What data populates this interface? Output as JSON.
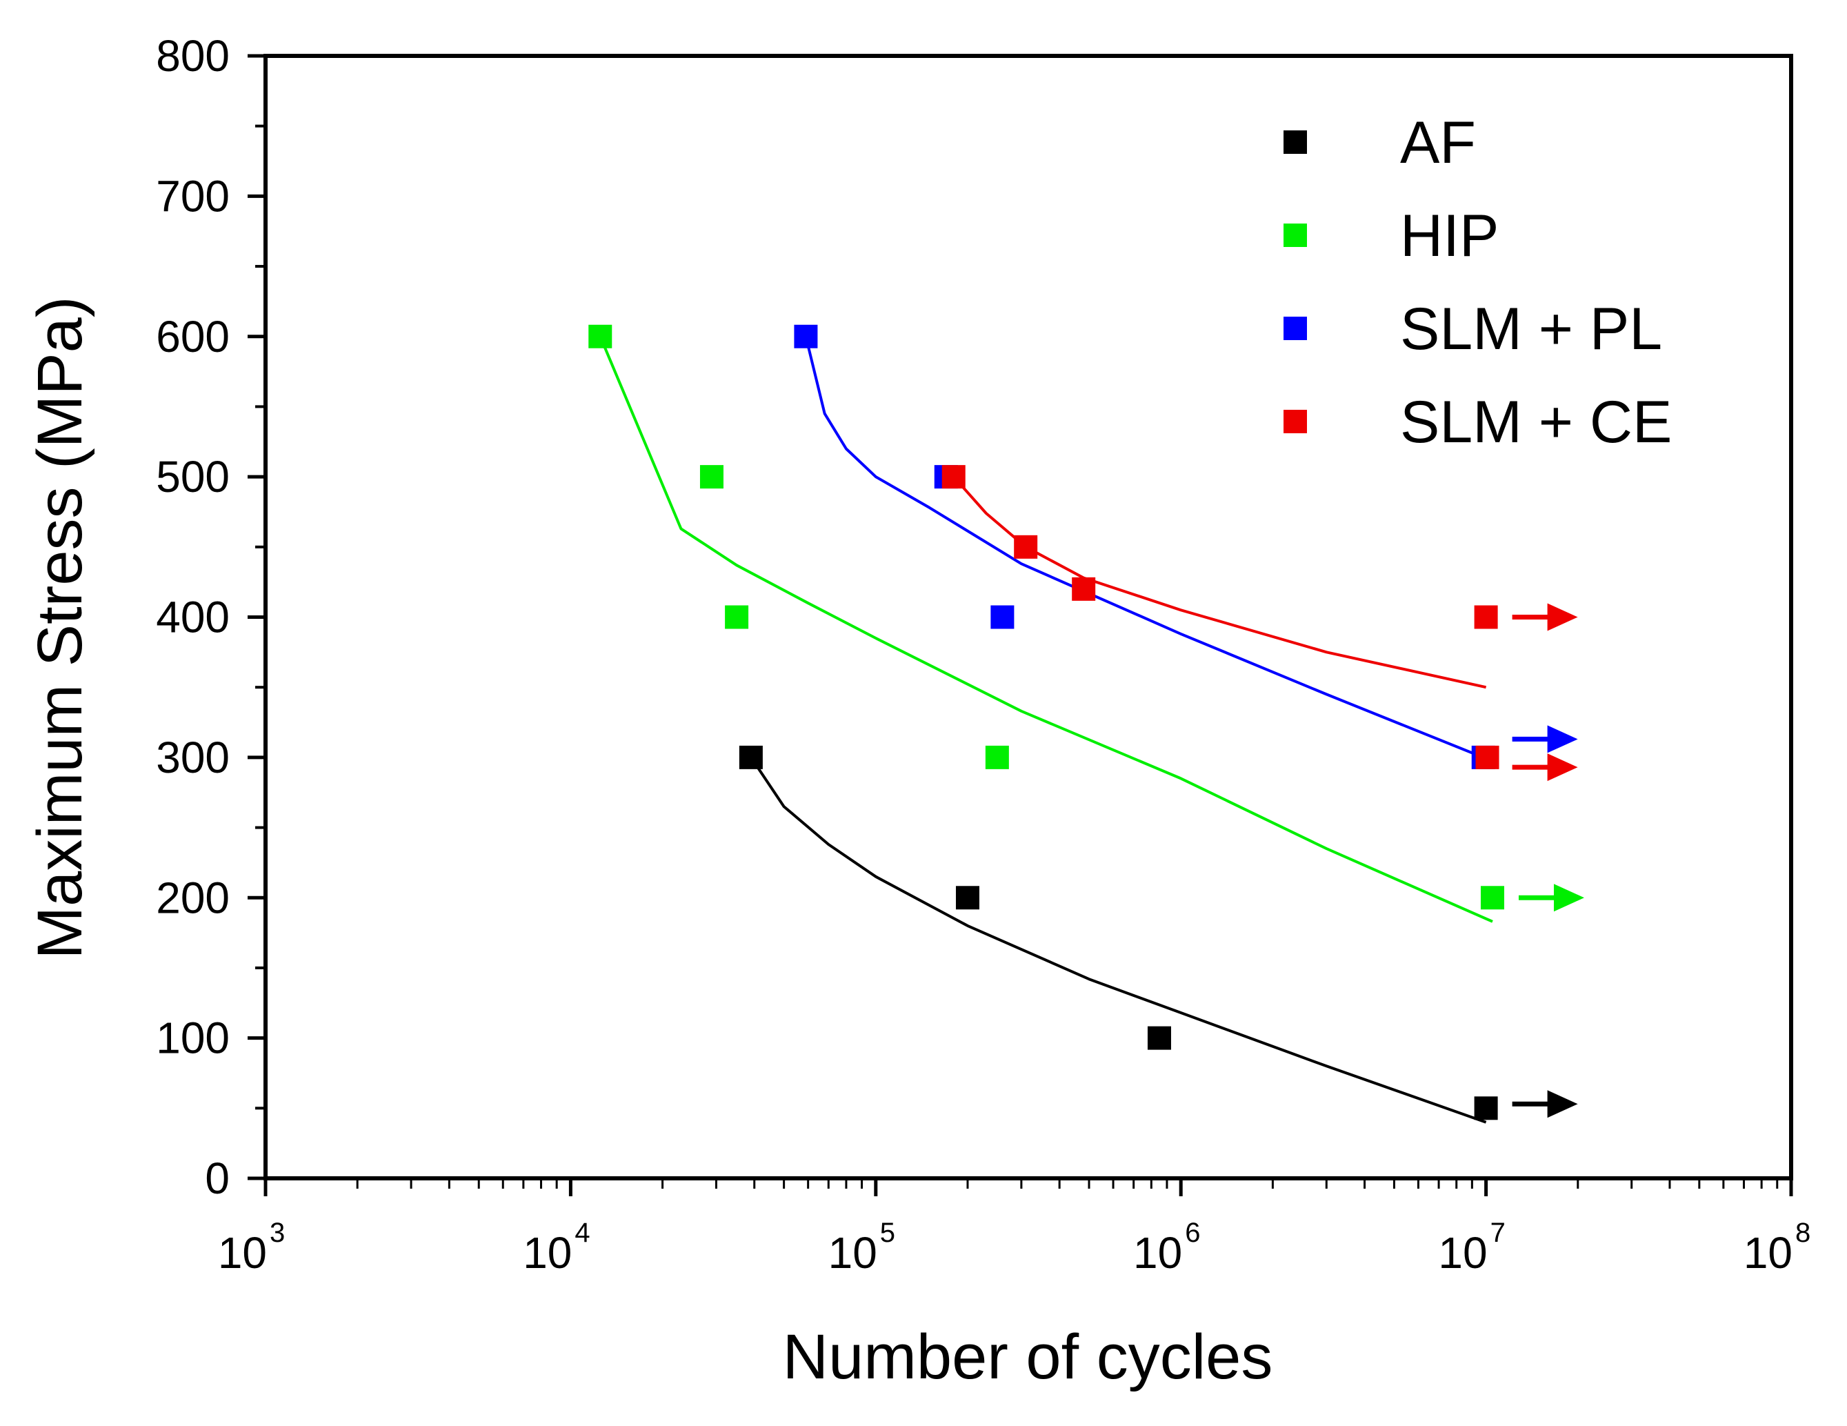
{
  "chart_data": {
    "type": "scatter",
    "title": "",
    "xlabel": "Number of cycles",
    "ylabel": "Maximum Stress (MPa)",
    "xscale": "log",
    "xlim": [
      1000,
      100000000
    ],
    "ylim": [
      0,
      800
    ],
    "grid": false,
    "legend_position": "top-right",
    "x_ticks": [
      {
        "value": 1000,
        "base": "10",
        "exp": "3"
      },
      {
        "value": 10000,
        "base": "10",
        "exp": "4"
      },
      {
        "value": 100000,
        "base": "10",
        "exp": "5"
      },
      {
        "value": 1000000,
        "base": "10",
        "exp": "6"
      },
      {
        "value": 10000000,
        "base": "10",
        "exp": "7"
      },
      {
        "value": 100000000,
        "base": "10",
        "exp": "8"
      }
    ],
    "y_ticks": [
      0,
      100,
      200,
      300,
      400,
      500,
      600,
      700,
      800
    ],
    "y_minor_ticks": [
      50,
      150,
      250,
      350,
      450,
      550,
      650,
      750
    ],
    "series": [
      {
        "name": "AF",
        "color": "#000000",
        "points": [
          {
            "x": 39000,
            "y": 300
          },
          {
            "x": 200000,
            "y": 200
          },
          {
            "x": 850000,
            "y": 100
          },
          {
            "x": 10000000,
            "y": 50
          }
        ],
        "fit": [
          {
            "x": 39000,
            "y": 300
          },
          {
            "x": 50000,
            "y": 265
          },
          {
            "x": 70000,
            "y": 238
          },
          {
            "x": 100000,
            "y": 215
          },
          {
            "x": 200000,
            "y": 180
          },
          {
            "x": 500000,
            "y": 142
          },
          {
            "x": 1000000,
            "y": 118
          },
          {
            "x": 3000000,
            "y": 80
          },
          {
            "x": 10000000,
            "y": 40
          }
        ],
        "runouts": [
          {
            "x": 10000000,
            "y": 53
          }
        ]
      },
      {
        "name": "HIP",
        "color": "#00ee00",
        "points": [
          {
            "x": 12500,
            "y": 600
          },
          {
            "x": 29000,
            "y": 500
          },
          {
            "x": 35000,
            "y": 400
          },
          {
            "x": 250000,
            "y": 300
          },
          {
            "x": 10500000,
            "y": 200
          }
        ],
        "fit": [
          {
            "x": 12500,
            "y": 600
          },
          {
            "x": 23000,
            "y": 463
          },
          {
            "x": 35000,
            "y": 437
          },
          {
            "x": 60000,
            "y": 410
          },
          {
            "x": 100000,
            "y": 385
          },
          {
            "x": 300000,
            "y": 333
          },
          {
            "x": 1000000,
            "y": 285
          },
          {
            "x": 3000000,
            "y": 235
          },
          {
            "x": 10500000,
            "y": 183
          }
        ],
        "runouts": [
          {
            "x": 10500000,
            "y": 200
          }
        ]
      },
      {
        "name": "SLM + PL",
        "color": "#0000ff",
        "points": [
          {
            "x": 59000,
            "y": 600
          },
          {
            "x": 170000,
            "y": 500
          },
          {
            "x": 260000,
            "y": 400
          },
          {
            "x": 9800000,
            "y": 300
          }
        ],
        "fit": [
          {
            "x": 59000,
            "y": 600
          },
          {
            "x": 68000,
            "y": 545
          },
          {
            "x": 80000,
            "y": 520
          },
          {
            "x": 100000,
            "y": 500
          },
          {
            "x": 150000,
            "y": 478
          },
          {
            "x": 300000,
            "y": 438
          },
          {
            "x": 1000000,
            "y": 388
          },
          {
            "x": 3000000,
            "y": 345
          },
          {
            "x": 9800000,
            "y": 300
          }
        ],
        "runouts": [
          {
            "x": 10000000,
            "y": 313
          }
        ]
      },
      {
        "name": "SLM + CE",
        "color": "#ee0000",
        "points": [
          {
            "x": 180000,
            "y": 500
          },
          {
            "x": 310000,
            "y": 450
          },
          {
            "x": 480000,
            "y": 420
          },
          {
            "x": 10000000,
            "y": 400
          },
          {
            "x": 10100000,
            "y": 300
          }
        ],
        "fit": [
          {
            "x": 180000,
            "y": 500
          },
          {
            "x": 230000,
            "y": 474
          },
          {
            "x": 310000,
            "y": 450
          },
          {
            "x": 480000,
            "y": 428
          },
          {
            "x": 1000000,
            "y": 405
          },
          {
            "x": 3000000,
            "y": 375
          },
          {
            "x": 10000000,
            "y": 350
          }
        ],
        "runouts": [
          {
            "x": 10000000,
            "y": 400
          },
          {
            "x": 10000000,
            "y": 293
          }
        ]
      }
    ]
  }
}
